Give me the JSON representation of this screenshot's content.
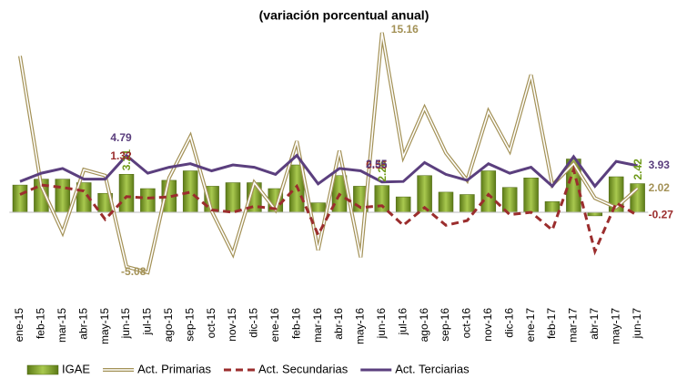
{
  "chart_data": {
    "type": "bar_line",
    "title": "(variación porcentual anual)",
    "categories": [
      "ene-15",
      "feb-15",
      "mar-15",
      "abr-15",
      "may-15",
      "jun-15",
      "jul-15",
      "ago-15",
      "sep-15",
      "oct-15",
      "nov-15",
      "dic-15",
      "ene-16",
      "feb-16",
      "mar-16",
      "abr-16",
      "may-16",
      "jun-16",
      "jul-16",
      "ago-16",
      "sep-16",
      "oct-16",
      "nov-16",
      "dic-16",
      "ene-17",
      "feb-17",
      "mar-17",
      "abr-17",
      "may-17",
      "jun-17"
    ],
    "ylim": [
      -7,
      16.5
    ],
    "series": [
      {
        "name": "IGAE",
        "type": "bar",
        "color": "#7f9f2c",
        "values": [
          2.3,
          2.8,
          2.8,
          2.5,
          1.6,
          3.21,
          2.0,
          2.7,
          3.5,
          2.2,
          2.5,
          2.5,
          2.0,
          4.0,
          0.8,
          3.1,
          2.2,
          2.26,
          1.3,
          3.1,
          1.7,
          1.5,
          3.5,
          2.1,
          2.9,
          0.9,
          4.5,
          -0.3,
          3.0,
          2.42
        ],
        "value_labels": [
          null,
          null,
          null,
          null,
          null,
          "3.21",
          null,
          null,
          null,
          null,
          null,
          null,
          null,
          null,
          null,
          null,
          null,
          "2.26",
          null,
          null,
          null,
          null,
          null,
          null,
          null,
          null,
          null,
          null,
          null,
          "2.42"
        ]
      },
      {
        "name": "Act. Primarias",
        "type": "line",
        "style": "double",
        "color": "#a39156",
        "values": [
          13.2,
          2.2,
          -1.7,
          3.6,
          3.1,
          -4.6,
          -5.08,
          2.9,
          6.4,
          0.1,
          -3.5,
          2.5,
          0.2,
          6.0,
          -3.2,
          5.2,
          -3.8,
          15.16,
          4.7,
          8.8,
          5.0,
          2.7,
          8.5,
          5.2,
          11.6,
          2.3,
          4.1,
          1.2,
          0.4,
          2.02
        ],
        "value_labels": [
          null,
          null,
          null,
          null,
          null,
          null,
          "-5.08",
          null,
          null,
          null,
          null,
          null,
          null,
          null,
          null,
          null,
          null,
          "15.16",
          null,
          null,
          null,
          null,
          null,
          null,
          null,
          null,
          null,
          null,
          null,
          "2.02"
        ]
      },
      {
        "name": "Act. Secundarias",
        "type": "line",
        "style": "dashed",
        "color": "#9b2d2d",
        "values": [
          1.5,
          2.3,
          2.1,
          1.8,
          -0.6,
          1.32,
          1.2,
          1.3,
          1.7,
          0.2,
          0.0,
          0.5,
          0.3,
          2.2,
          -1.9,
          1.5,
          0.4,
          0.55,
          -1.1,
          0.4,
          -1.1,
          -0.7,
          1.5,
          -0.2,
          0.0,
          -1.5,
          3.6,
          -3.3,
          0.8,
          -0.27
        ],
        "value_labels": [
          null,
          null,
          null,
          null,
          null,
          "1.32",
          null,
          null,
          null,
          null,
          null,
          null,
          null,
          null,
          null,
          null,
          null,
          "0.55",
          null,
          null,
          null,
          null,
          null,
          null,
          null,
          null,
          null,
          null,
          null,
          "-0.27"
        ]
      },
      {
        "name": "Act. Terciarias",
        "type": "line",
        "style": "solid",
        "color": "#5b3f7e",
        "values": [
          2.6,
          3.3,
          3.7,
          2.8,
          2.8,
          4.79,
          3.3,
          3.8,
          4.1,
          3.5,
          4.0,
          3.8,
          3.2,
          4.8,
          2.4,
          3.7,
          3.5,
          2.55,
          2.6,
          4.2,
          3.2,
          2.7,
          4.1,
          3.3,
          3.8,
          2.2,
          4.7,
          2.2,
          4.3,
          3.93
        ],
        "value_labels": [
          null,
          null,
          null,
          null,
          null,
          "4.79",
          null,
          null,
          null,
          null,
          null,
          null,
          null,
          null,
          null,
          null,
          null,
          "2.55",
          null,
          null,
          null,
          null,
          null,
          null,
          null,
          null,
          null,
          null,
          null,
          "3.93"
        ]
      }
    ]
  }
}
